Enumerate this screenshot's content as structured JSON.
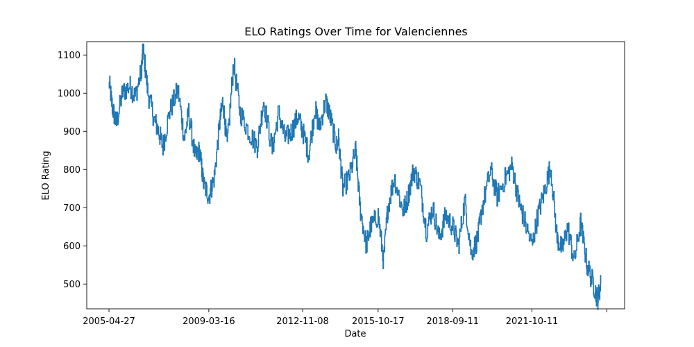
{
  "chart_data": {
    "type": "line",
    "title": "ELO Ratings Over Time for Valenciennes",
    "xlabel": "Date",
    "ylabel": "ELO Rating",
    "x_tick_labels": [
      "2005-04-27",
      "2009-03-16",
      "2012-11-08",
      "2015-10-17",
      "2018-09-11",
      "2021-10-11",
      ""
    ],
    "x_tick_dates": [
      "2005-04-27",
      "2009-03-16",
      "2012-11-08",
      "2015-10-17",
      "2018-09-11",
      "2021-10-11",
      "2024-09-10"
    ],
    "xlim": [
      "2004-06-15",
      "2025-05-20"
    ],
    "y_ticks": [
      500,
      600,
      700,
      800,
      900,
      1000,
      1100
    ],
    "ylim": [
      435,
      1135
    ],
    "grid": false,
    "legend": "none",
    "color": "#1f77b4",
    "series": [
      {
        "x": [
          "2005-04-27",
          "2005-06-15",
          "2005-08-10",
          "2005-11-01",
          "2006-02-15",
          "2006-05-01",
          "2006-08-01",
          "2006-08-25",
          "2006-11-01",
          "2007-02-01",
          "2007-04-01",
          "2007-06-01",
          "2007-09-01",
          "2008-01-01",
          "2008-04-01",
          "2008-06-01",
          "2008-09-01",
          "2008-11-01",
          "2009-01-01",
          "2009-03-16",
          "2009-06-01",
          "2009-08-15",
          "2009-10-01",
          "2009-12-01",
          "2010-03-01",
          "2010-06-01",
          "2010-10-01",
          "2011-02-01",
          "2011-05-01",
          "2011-09-01",
          "2011-12-01",
          "2012-03-01",
          "2012-06-01",
          "2012-09-01",
          "2012-11-08",
          "2013-02-01",
          "2013-05-01",
          "2013-07-01",
          "2013-10-01",
          "2013-12-01",
          "2014-03-01",
          "2014-04-01",
          "2014-06-01",
          "2014-09-01",
          "2014-12-01",
          "2015-02-01",
          "2015-05-01",
          "2015-07-01",
          "2015-10-17",
          "2016-01-01",
          "2016-03-01",
          "2016-06-01",
          "2016-10-01",
          "2016-12-01",
          "2017-03-01",
          "2017-06-01",
          "2017-09-01",
          "2017-12-01",
          "2018-03-01",
          "2018-06-01",
          "2018-09-11",
          "2018-12-01",
          "2019-03-01",
          "2019-06-01",
          "2019-09-01",
          "2019-11-01",
          "2020-03-01",
          "2020-06-01",
          "2020-10-01",
          "2021-01-01",
          "2021-04-01",
          "2021-06-01",
          "2021-10-11",
          "2022-01-01",
          "2022-04-01",
          "2022-07-01",
          "2022-10-01",
          "2022-12-15",
          "2023-03-01",
          "2023-06-01",
          "2023-09-01",
          "2023-12-01",
          "2024-03-01",
          "2024-05-01",
          "2024-06-15"
        ],
        "values": [
          1030,
          960,
          920,
          1000,
          1020,
          990,
          1060,
          1115,
          1000,
          930,
          900,
          860,
          950,
          1010,
          880,
          950,
          830,
          850,
          760,
          730,
          780,
          920,
          980,
          860,
          1080,
          950,
          900,
          860,
          980,
          850,
          950,
          880,
          900,
          940,
          900,
          840,
          960,
          910,
          980,
          940,
          860,
          880,
          750,
          780,
          850,
          700,
          600,
          650,
          680,
          560,
          700,
          780,
          690,
          720,
          800,
          760,
          640,
          700,
          620,
          680,
          650,
          600,
          720,
          580,
          620,
          700,
          800,
          730,
          780,
          810,
          720,
          680,
          600,
          680,
          740,
          810,
          620,
          590,
          650,
          560,
          660,
          550,
          500,
          460,
          500
        ]
      }
    ]
  }
}
